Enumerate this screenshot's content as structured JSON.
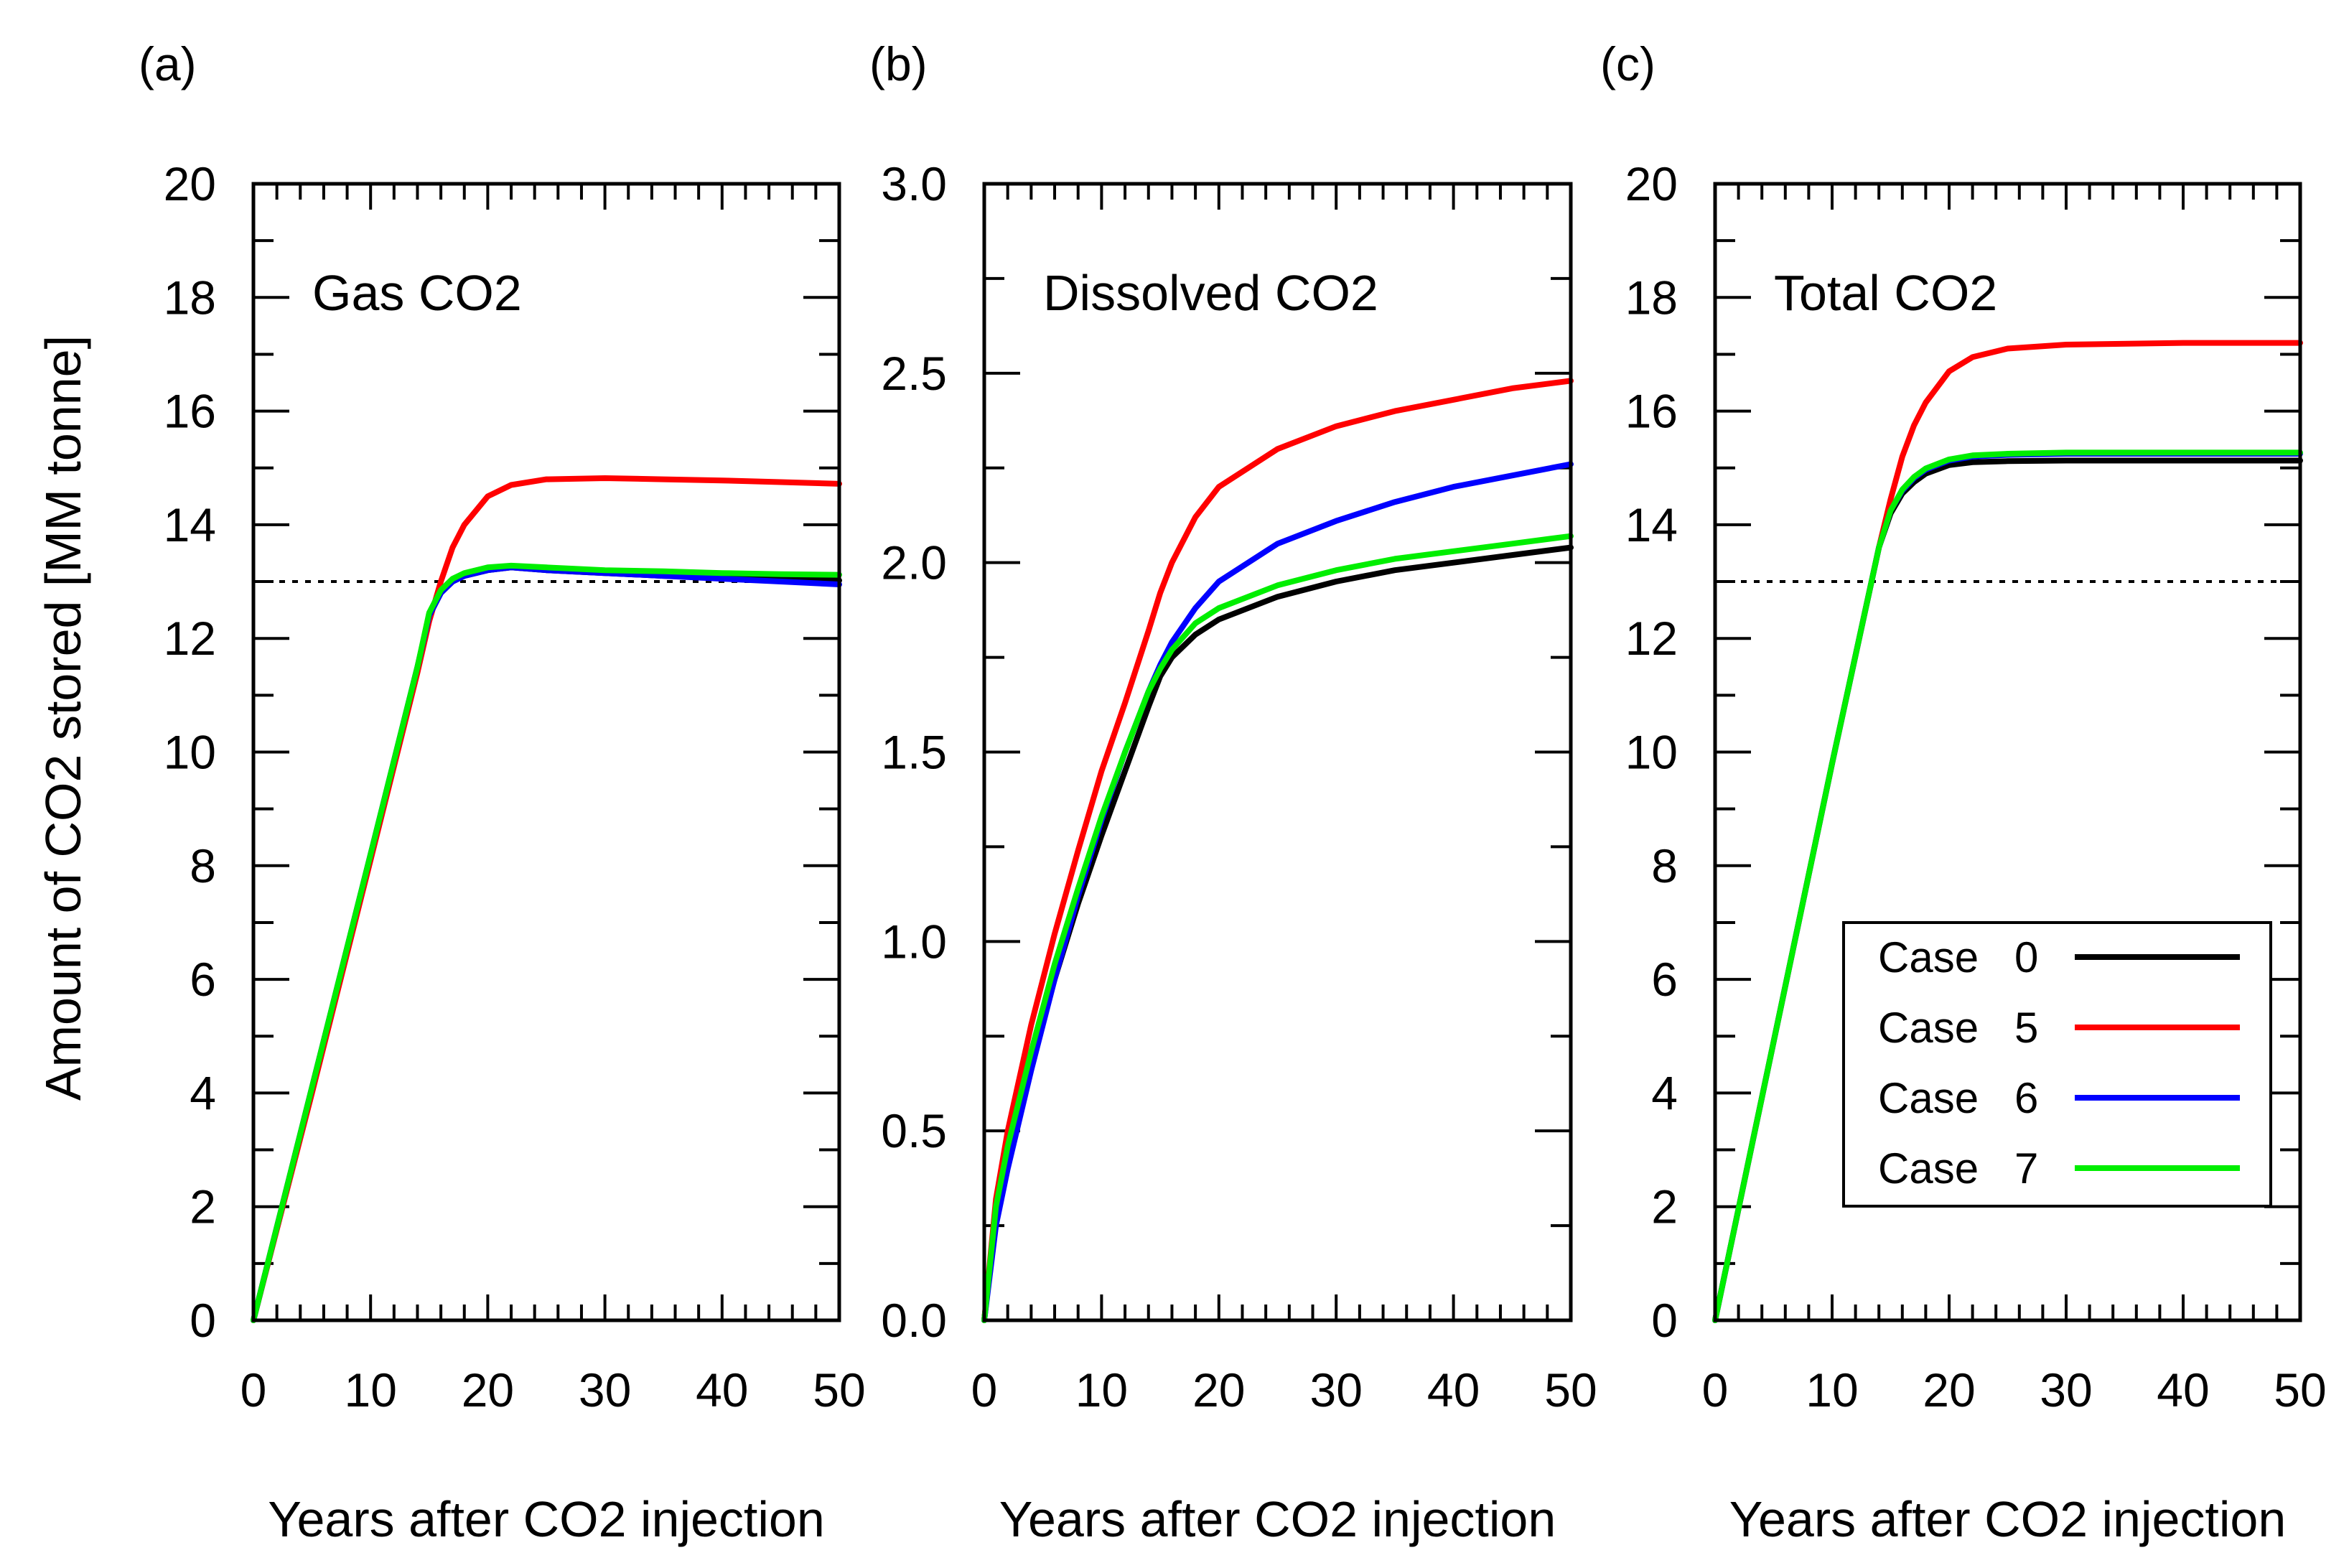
{
  "ylabel_shared": "Amount of CO2 stored [MM tonne]",
  "chart_data": [
    {
      "type": "line",
      "panel_label": "(a)",
      "title": "Gas CO2",
      "xlabel": "Years after CO2 injection",
      "xlim": [
        0,
        50
      ],
      "ylim": [
        0,
        20
      ],
      "xticks": [
        0,
        10,
        20,
        30,
        40,
        50
      ],
      "yticks": [
        0,
        2,
        4,
        6,
        8,
        10,
        12,
        14,
        16,
        18,
        20
      ],
      "xtick_labels": [
        "0",
        "10",
        "20",
        "30",
        "40",
        "50"
      ],
      "ytick_labels": [
        "0",
        "2",
        "4",
        "6",
        "8",
        "10",
        "12",
        "14",
        "16",
        "18",
        "20"
      ],
      "reference_line": {
        "y": 13,
        "style": "dotted"
      },
      "series": [
        {
          "name": "Case 0",
          "color": "#000000",
          "x": [
            0,
            5,
            10,
            14,
            15,
            16,
            17,
            18,
            20,
            22,
            25,
            30,
            35,
            40,
            45,
            50
          ],
          "y": [
            0,
            4.1,
            8.2,
            11.5,
            12.4,
            12.8,
            13.0,
            13.1,
            13.2,
            13.25,
            13.2,
            13.15,
            13.1,
            13.08,
            13.05,
            13.02
          ]
        },
        {
          "name": "Case 5",
          "color": "#ff0000",
          "x": [
            0,
            5,
            10,
            14,
            15,
            16,
            17,
            18,
            20,
            22,
            25,
            30,
            35,
            40,
            45,
            50
          ],
          "y": [
            0,
            4.0,
            8.1,
            11.4,
            12.3,
            13.0,
            13.6,
            14.0,
            14.5,
            14.7,
            14.8,
            14.82,
            14.8,
            14.78,
            14.75,
            14.72
          ]
        },
        {
          "name": "Case 6",
          "color": "#0000ff",
          "x": [
            0,
            5,
            10,
            14,
            15,
            16,
            17,
            18,
            20,
            22,
            25,
            30,
            35,
            40,
            45,
            50
          ],
          "y": [
            0,
            4.1,
            8.2,
            11.5,
            12.4,
            12.8,
            13.0,
            13.1,
            13.2,
            13.25,
            13.2,
            13.15,
            13.1,
            13.05,
            13.0,
            12.95
          ]
        },
        {
          "name": "Case 7",
          "color": "#00ee00",
          "x": [
            0,
            5,
            10,
            14,
            15,
            16,
            17,
            18,
            20,
            22,
            25,
            30,
            35,
            40,
            45,
            50
          ],
          "y": [
            0,
            4.1,
            8.2,
            11.5,
            12.45,
            12.85,
            13.05,
            13.15,
            13.25,
            13.28,
            13.25,
            13.2,
            13.18,
            13.15,
            13.13,
            13.12
          ]
        }
      ]
    },
    {
      "type": "line",
      "panel_label": "(b)",
      "title": "Dissolved CO2",
      "xlabel": "Years after CO2 injection",
      "xlim": [
        0,
        50
      ],
      "ylim": [
        0,
        3
      ],
      "xticks": [
        0,
        10,
        20,
        30,
        40,
        50
      ],
      "yticks": [
        0,
        0.5,
        1.0,
        1.5,
        2.0,
        2.5,
        3.0
      ],
      "xtick_labels": [
        "0",
        "10",
        "20",
        "30",
        "40",
        "50"
      ],
      "ytick_labels": [
        "0.0",
        "0.5",
        "1.0",
        "1.5",
        "2.0",
        "2.5",
        "3.0"
      ],
      "series": [
        {
          "name": "Case 0",
          "color": "#000000",
          "x": [
            0,
            1,
            2,
            4,
            6,
            8,
            10,
            12,
            14,
            15,
            16,
            18,
            20,
            25,
            30,
            35,
            40,
            45,
            50
          ],
          "y": [
            0,
            0.28,
            0.43,
            0.68,
            0.9,
            1.1,
            1.28,
            1.45,
            1.62,
            1.7,
            1.75,
            1.81,
            1.85,
            1.91,
            1.95,
            1.98,
            2.0,
            2.02,
            2.04
          ]
        },
        {
          "name": "Case 5",
          "color": "#ff0000",
          "x": [
            0,
            1,
            2,
            4,
            6,
            8,
            10,
            12,
            14,
            15,
            16,
            18,
            20,
            25,
            30,
            35,
            40,
            45,
            50
          ],
          "y": [
            0,
            0.32,
            0.5,
            0.78,
            1.02,
            1.24,
            1.45,
            1.63,
            1.82,
            1.92,
            2.0,
            2.12,
            2.2,
            2.3,
            2.36,
            2.4,
            2.43,
            2.46,
            2.48
          ]
        },
        {
          "name": "Case 6",
          "color": "#0000ff",
          "x": [
            0,
            1,
            2,
            4,
            6,
            8,
            10,
            12,
            14,
            15,
            16,
            18,
            20,
            25,
            30,
            35,
            40,
            45,
            50
          ],
          "y": [
            0,
            0.25,
            0.4,
            0.66,
            0.9,
            1.12,
            1.32,
            1.5,
            1.66,
            1.73,
            1.79,
            1.88,
            1.95,
            2.05,
            2.11,
            2.16,
            2.2,
            2.23,
            2.26
          ]
        },
        {
          "name": "Case 7",
          "color": "#00ee00",
          "x": [
            0,
            1,
            2,
            4,
            6,
            8,
            10,
            12,
            14,
            15,
            16,
            18,
            20,
            25,
            30,
            35,
            40,
            45,
            50
          ],
          "y": [
            0,
            0.3,
            0.46,
            0.71,
            0.94,
            1.14,
            1.33,
            1.5,
            1.66,
            1.72,
            1.77,
            1.84,
            1.88,
            1.94,
            1.98,
            2.01,
            2.03,
            2.05,
            2.07
          ]
        }
      ]
    },
    {
      "type": "line",
      "panel_label": "(c)",
      "title": "Total CO2",
      "xlabel": "Years after CO2 injection",
      "xlim": [
        0,
        50
      ],
      "ylim": [
        0,
        20
      ],
      "xticks": [
        0,
        10,
        20,
        30,
        40,
        50
      ],
      "yticks": [
        0,
        2,
        4,
        6,
        8,
        10,
        12,
        14,
        16,
        18,
        20
      ],
      "xtick_labels": [
        "0",
        "10",
        "20",
        "30",
        "40",
        "50"
      ],
      "ytick_labels": [
        "0",
        "2",
        "4",
        "6",
        "8",
        "10",
        "12",
        "14",
        "16",
        "18",
        "20"
      ],
      "reference_line": {
        "y": 13,
        "style": "dotted"
      },
      "legend": {
        "position": "bottom-right",
        "entries": [
          {
            "case": "Case",
            "num": "0",
            "color": "#000000"
          },
          {
            "case": "Case",
            "num": "5",
            "color": "#ff0000"
          },
          {
            "case": "Case",
            "num": "6",
            "color": "#0000ff"
          },
          {
            "case": "Case",
            "num": "7",
            "color": "#00ee00"
          }
        ]
      },
      "series": [
        {
          "name": "Case 0",
          "color": "#000000",
          "x": [
            0,
            5,
            10,
            14,
            15,
            16,
            17,
            18,
            20,
            22,
            25,
            30,
            40,
            50
          ],
          "y": [
            0,
            4.9,
            9.8,
            13.6,
            14.2,
            14.55,
            14.75,
            14.9,
            15.05,
            15.1,
            15.12,
            15.13,
            15.13,
            15.13
          ]
        },
        {
          "name": "Case 5",
          "color": "#ff0000",
          "x": [
            0,
            5,
            10,
            14,
            15,
            16,
            17,
            18,
            20,
            22,
            25,
            30,
            40,
            50
          ],
          "y": [
            0,
            4.9,
            9.8,
            13.6,
            14.45,
            15.2,
            15.75,
            16.15,
            16.7,
            16.95,
            17.1,
            17.17,
            17.2,
            17.2
          ]
        },
        {
          "name": "Case 6",
          "color": "#0000ff",
          "x": [
            0,
            5,
            10,
            14,
            15,
            16,
            17,
            18,
            20,
            22,
            25,
            30,
            40,
            50
          ],
          "y": [
            0,
            4.9,
            9.8,
            13.6,
            14.25,
            14.6,
            14.82,
            14.97,
            15.13,
            15.2,
            15.23,
            15.25,
            15.25,
            15.25
          ]
        },
        {
          "name": "Case 7",
          "color": "#00ee00",
          "x": [
            0,
            5,
            10,
            14,
            15,
            16,
            17,
            18,
            20,
            22,
            25,
            30,
            40,
            50
          ],
          "y": [
            0,
            4.9,
            9.8,
            13.6,
            14.25,
            14.62,
            14.84,
            14.99,
            15.15,
            15.22,
            15.25,
            15.27,
            15.27,
            15.27
          ]
        }
      ]
    }
  ]
}
